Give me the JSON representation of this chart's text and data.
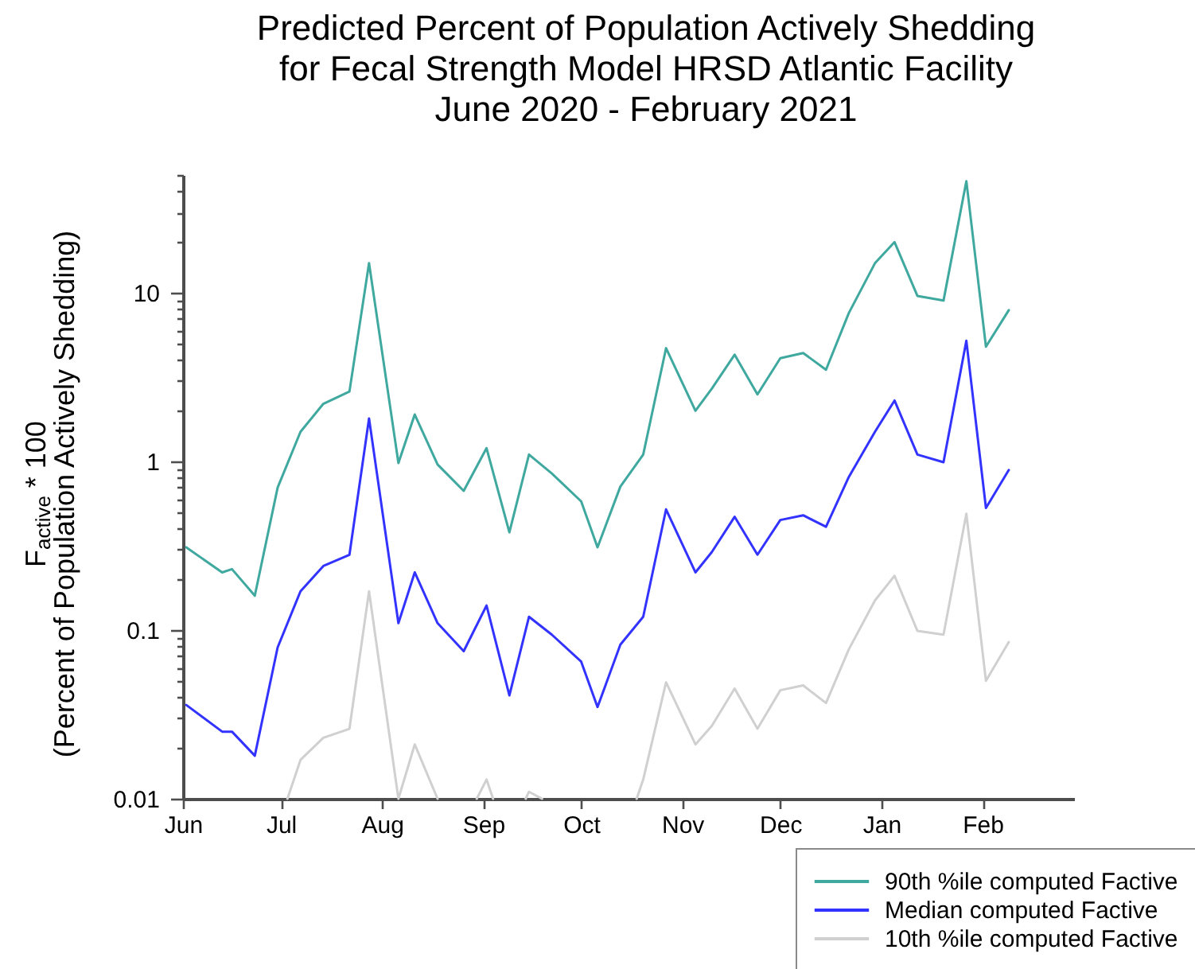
{
  "chart_data": {
    "type": "line",
    "title": "Predicted Percent of Population Actively Shedding\nfor Fecal Strength Model HRSD Atlantic Facility\nJune 2020 - February 2021",
    "ylabel": "F$_{active}$ * 100\n(Percent of Population Actively Shedding)",
    "x": [
      "2020-06-02",
      "2020-06-13",
      "2020-06-16",
      "2020-06-23",
      "2020-06-30",
      "2020-07-07",
      "2020-07-14",
      "2020-07-22",
      "2020-07-28",
      "2020-08-06",
      "2020-08-11",
      "2020-08-18",
      "2020-08-26",
      "2020-09-02",
      "2020-09-09",
      "2020-09-15",
      "2020-09-22",
      "2020-10-01",
      "2020-10-06",
      "2020-10-13",
      "2020-10-20",
      "2020-10-27",
      "2020-11-05",
      "2020-11-10",
      "2020-11-17",
      "2020-11-24",
      "2020-12-01",
      "2020-12-08",
      "2020-12-15",
      "2020-12-22",
      "2020-12-30",
      "2021-01-05",
      "2021-01-12",
      "2021-01-20",
      "2021-01-27",
      "2021-02-02",
      "2021-02-09"
    ],
    "series": [
      {
        "name": "90th %ile computed Factive",
        "color": "#3fa89f",
        "values": [
          0.31,
          0.22,
          0.23,
          0.16,
          0.7,
          1.5,
          2.2,
          2.6,
          15,
          0.98,
          1.9,
          0.96,
          0.67,
          1.2,
          0.38,
          1.1,
          0.85,
          0.58,
          0.31,
          0.71,
          1.1,
          4.7,
          2.0,
          2.7,
          4.3,
          2.5,
          4.1,
          4.4,
          3.5,
          7.6,
          15,
          20,
          9.6,
          9.0,
          46,
          4.8,
          7.9
        ]
      },
      {
        "name": "Median computed Factive",
        "color": "#3333ff",
        "values": [
          0.036,
          0.025,
          0.025,
          0.018,
          0.079,
          0.17,
          0.24,
          0.28,
          1.8,
          0.11,
          0.22,
          0.11,
          0.075,
          0.14,
          0.041,
          0.12,
          0.094,
          0.065,
          0.035,
          0.082,
          0.12,
          0.52,
          0.22,
          0.29,
          0.47,
          0.28,
          0.45,
          0.48,
          0.41,
          0.81,
          1.5,
          2.3,
          1.1,
          0.99,
          5.2,
          0.53,
          0.89
        ]
      },
      {
        "name": "10th %ile computed Factive",
        "color": "#d0d0d0",
        "x": [
          "2020-07-03",
          "2020-07-07",
          "2020-07-14",
          "2020-07-22",
          "2020-07-28",
          "2020-08-06",
          "2020-08-11",
          "2020-08-18",
          "2020-08-26",
          "2020-08-30",
          "2020-09-02",
          "2020-09-04",
          "2020-09-09",
          "2020-09-14",
          "2020-09-15",
          "2020-09-19",
          "2020-10-01",
          "2020-10-18",
          "2020-10-20",
          "2020-10-27",
          "2020-11-05",
          "2020-11-10",
          "2020-11-17",
          "2020-11-24",
          "2020-12-01",
          "2020-12-08",
          "2020-12-15",
          "2020-12-22",
          "2020-12-30",
          "2021-01-05",
          "2021-01-12",
          "2021-01-20",
          "2021-01-27",
          "2021-02-02",
          "2021-02-09"
        ],
        "values": [
          0.01,
          0.017,
          0.023,
          0.026,
          0.17,
          0.01,
          0.021,
          0.01,
          null,
          0.01,
          0.013,
          0.01,
          null,
          0.01,
          0.011,
          0.01,
          null,
          0.01,
          0.013,
          0.049,
          0.021,
          0.027,
          0.045,
          0.026,
          0.044,
          0.047,
          0.037,
          0.077,
          0.15,
          0.21,
          0.099,
          0.094,
          0.49,
          0.05,
          0.085
        ]
      }
    ],
    "xlim": [
      "2020-06-01",
      "2021-03-01"
    ],
    "xticks": [
      {
        "value": "2020-06-01",
        "label": "Jun"
      },
      {
        "value": "2020-07-01",
        "label": "Jul"
      },
      {
        "value": "2020-08-01",
        "label": "Aug"
      },
      {
        "value": "2020-09-01",
        "label": "Sep"
      },
      {
        "value": "2020-10-01",
        "label": "Oct"
      },
      {
        "value": "2020-11-01",
        "label": "Nov"
      },
      {
        "value": "2020-12-01",
        "label": "Dec"
      },
      {
        "value": "2021-01-01",
        "label": "Jan"
      },
      {
        "value": "2021-02-01",
        "label": "Feb"
      }
    ],
    "ylim": [
      0.01,
      50
    ],
    "yticks": [
      0.01,
      {
        "value": 0.02,
        "label": null
      },
      {
        "value": 0.03,
        "label": null
      },
      {
        "value": 0.04,
        "label": null
      },
      {
        "value": 0.05,
        "label": null
      },
      {
        "value": 0.06,
        "label": null
      },
      {
        "value": 0.07,
        "label": null
      },
      {
        "value": 0.08,
        "label": null
      },
      {
        "value": 0.09,
        "label": null
      },
      0.1,
      {
        "value": 0.2,
        "label": null
      },
      {
        "value": 0.3,
        "label": null
      },
      {
        "value": 0.4,
        "label": null
      },
      {
        "value": 0.5,
        "label": null
      },
      {
        "value": 0.6,
        "label": null
      },
      {
        "value": 0.7,
        "label": null
      },
      {
        "value": 0.8,
        "label": null
      },
      {
        "value": 0.9,
        "label": null
      },
      1,
      {
        "value": 2,
        "label": null
      },
      {
        "value": 3,
        "label": null
      },
      {
        "value": 4,
        "label": null
      },
      {
        "value": 5,
        "label": null
      },
      {
        "value": 6,
        "label": null
      },
      {
        "value": 7,
        "label": null
      },
      {
        "value": 8,
        "label": null
      },
      {
        "value": 9,
        "label": null
      },
      10,
      {
        "value": 20,
        "label": null
      },
      {
        "value": 30,
        "label": null
      },
      {
        "value": 40,
        "label": null
      },
      {
        "value": 50,
        "label": null
      }
    ],
    "log": true,
    "legend": "bottom right"
  }
}
